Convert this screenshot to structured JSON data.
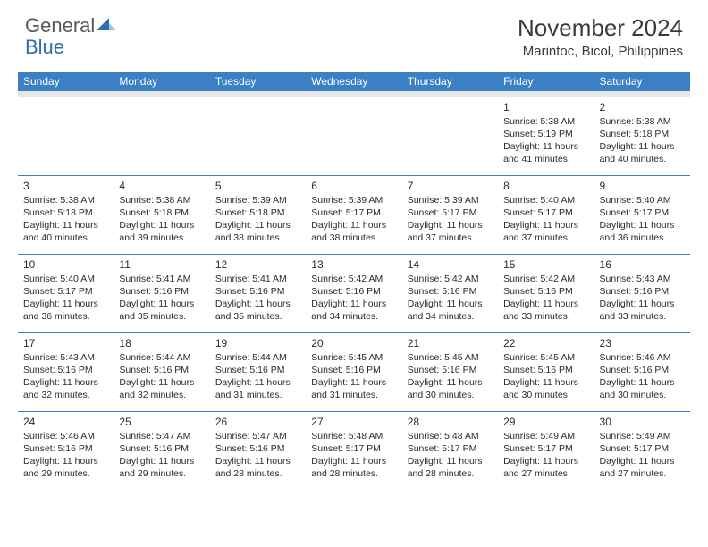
{
  "logo": {
    "part1": "General",
    "part2": "Blue"
  },
  "title": "November 2024",
  "location": "Marintoc, Bicol, Philippines",
  "colors": {
    "header_bg": "#3b7fc4",
    "header_text": "#ffffff",
    "subhead_bg": "#e6e6e6",
    "text": "#2b2b2b",
    "logo_gray": "#595959",
    "logo_blue": "#2f6eb0",
    "row_border": "#3b7fc4"
  },
  "weekdays": [
    "Sunday",
    "Monday",
    "Tuesday",
    "Wednesday",
    "Thursday",
    "Friday",
    "Saturday"
  ],
  "weeks": [
    [
      null,
      null,
      null,
      null,
      null,
      {
        "n": "1",
        "sr": "Sunrise: 5:38 AM",
        "ss": "Sunset: 5:19 PM",
        "dl": "Daylight: 11 hours and 41 minutes."
      },
      {
        "n": "2",
        "sr": "Sunrise: 5:38 AM",
        "ss": "Sunset: 5:18 PM",
        "dl": "Daylight: 11 hours and 40 minutes."
      }
    ],
    [
      {
        "n": "3",
        "sr": "Sunrise: 5:38 AM",
        "ss": "Sunset: 5:18 PM",
        "dl": "Daylight: 11 hours and 40 minutes."
      },
      {
        "n": "4",
        "sr": "Sunrise: 5:38 AM",
        "ss": "Sunset: 5:18 PM",
        "dl": "Daylight: 11 hours and 39 minutes."
      },
      {
        "n": "5",
        "sr": "Sunrise: 5:39 AM",
        "ss": "Sunset: 5:18 PM",
        "dl": "Daylight: 11 hours and 38 minutes."
      },
      {
        "n": "6",
        "sr": "Sunrise: 5:39 AM",
        "ss": "Sunset: 5:17 PM",
        "dl": "Daylight: 11 hours and 38 minutes."
      },
      {
        "n": "7",
        "sr": "Sunrise: 5:39 AM",
        "ss": "Sunset: 5:17 PM",
        "dl": "Daylight: 11 hours and 37 minutes."
      },
      {
        "n": "8",
        "sr": "Sunrise: 5:40 AM",
        "ss": "Sunset: 5:17 PM",
        "dl": "Daylight: 11 hours and 37 minutes."
      },
      {
        "n": "9",
        "sr": "Sunrise: 5:40 AM",
        "ss": "Sunset: 5:17 PM",
        "dl": "Daylight: 11 hours and 36 minutes."
      }
    ],
    [
      {
        "n": "10",
        "sr": "Sunrise: 5:40 AM",
        "ss": "Sunset: 5:17 PM",
        "dl": "Daylight: 11 hours and 36 minutes."
      },
      {
        "n": "11",
        "sr": "Sunrise: 5:41 AM",
        "ss": "Sunset: 5:16 PM",
        "dl": "Daylight: 11 hours and 35 minutes."
      },
      {
        "n": "12",
        "sr": "Sunrise: 5:41 AM",
        "ss": "Sunset: 5:16 PM",
        "dl": "Daylight: 11 hours and 35 minutes."
      },
      {
        "n": "13",
        "sr": "Sunrise: 5:42 AM",
        "ss": "Sunset: 5:16 PM",
        "dl": "Daylight: 11 hours and 34 minutes."
      },
      {
        "n": "14",
        "sr": "Sunrise: 5:42 AM",
        "ss": "Sunset: 5:16 PM",
        "dl": "Daylight: 11 hours and 34 minutes."
      },
      {
        "n": "15",
        "sr": "Sunrise: 5:42 AM",
        "ss": "Sunset: 5:16 PM",
        "dl": "Daylight: 11 hours and 33 minutes."
      },
      {
        "n": "16",
        "sr": "Sunrise: 5:43 AM",
        "ss": "Sunset: 5:16 PM",
        "dl": "Daylight: 11 hours and 33 minutes."
      }
    ],
    [
      {
        "n": "17",
        "sr": "Sunrise: 5:43 AM",
        "ss": "Sunset: 5:16 PM",
        "dl": "Daylight: 11 hours and 32 minutes."
      },
      {
        "n": "18",
        "sr": "Sunrise: 5:44 AM",
        "ss": "Sunset: 5:16 PM",
        "dl": "Daylight: 11 hours and 32 minutes."
      },
      {
        "n": "19",
        "sr": "Sunrise: 5:44 AM",
        "ss": "Sunset: 5:16 PM",
        "dl": "Daylight: 11 hours and 31 minutes."
      },
      {
        "n": "20",
        "sr": "Sunrise: 5:45 AM",
        "ss": "Sunset: 5:16 PM",
        "dl": "Daylight: 11 hours and 31 minutes."
      },
      {
        "n": "21",
        "sr": "Sunrise: 5:45 AM",
        "ss": "Sunset: 5:16 PM",
        "dl": "Daylight: 11 hours and 30 minutes."
      },
      {
        "n": "22",
        "sr": "Sunrise: 5:45 AM",
        "ss": "Sunset: 5:16 PM",
        "dl": "Daylight: 11 hours and 30 minutes."
      },
      {
        "n": "23",
        "sr": "Sunrise: 5:46 AM",
        "ss": "Sunset: 5:16 PM",
        "dl": "Daylight: 11 hours and 30 minutes."
      }
    ],
    [
      {
        "n": "24",
        "sr": "Sunrise: 5:46 AM",
        "ss": "Sunset: 5:16 PM",
        "dl": "Daylight: 11 hours and 29 minutes."
      },
      {
        "n": "25",
        "sr": "Sunrise: 5:47 AM",
        "ss": "Sunset: 5:16 PM",
        "dl": "Daylight: 11 hours and 29 minutes."
      },
      {
        "n": "26",
        "sr": "Sunrise: 5:47 AM",
        "ss": "Sunset: 5:16 PM",
        "dl": "Daylight: 11 hours and 28 minutes."
      },
      {
        "n": "27",
        "sr": "Sunrise: 5:48 AM",
        "ss": "Sunset: 5:17 PM",
        "dl": "Daylight: 11 hours and 28 minutes."
      },
      {
        "n": "28",
        "sr": "Sunrise: 5:48 AM",
        "ss": "Sunset: 5:17 PM",
        "dl": "Daylight: 11 hours and 28 minutes."
      },
      {
        "n": "29",
        "sr": "Sunrise: 5:49 AM",
        "ss": "Sunset: 5:17 PM",
        "dl": "Daylight: 11 hours and 27 minutes."
      },
      {
        "n": "30",
        "sr": "Sunrise: 5:49 AM",
        "ss": "Sunset: 5:17 PM",
        "dl": "Daylight: 11 hours and 27 minutes."
      }
    ]
  ]
}
